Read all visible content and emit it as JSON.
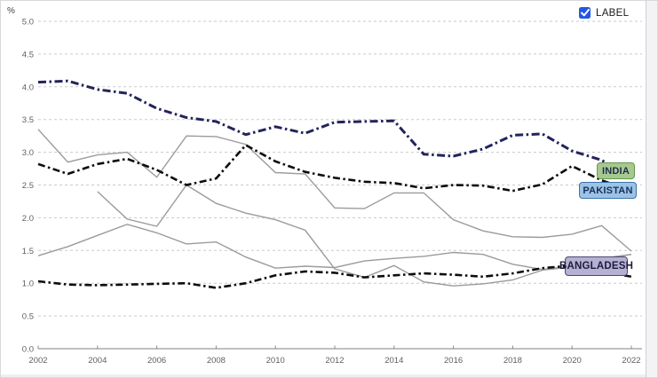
{
  "legend": {
    "checkbox_label": "LABEL",
    "checked": true
  },
  "colors": {
    "checkbox_blue": "#2457e0",
    "grid": "#cacaca",
    "axis": "#9a9a9a",
    "tick_text": "#5f5f5f",
    "background": "#ffffff"
  },
  "chart_data": {
    "type": "line",
    "unit_label": "%",
    "x": [
      2002,
      2003,
      2004,
      2005,
      2006,
      2007,
      2008,
      2009,
      2010,
      2011,
      2012,
      2013,
      2014,
      2015,
      2016,
      2017,
      2018,
      2019,
      2020,
      2021,
      2022
    ],
    "x_tick_labels": [
      "2002",
      "2004",
      "2006",
      "2008",
      "2010",
      "2012",
      "2014",
      "2016",
      "2018",
      "2020",
      "2022"
    ],
    "y_tick_labels": [
      "0.0",
      "0.5",
      "1.0",
      "1.5",
      "2.0",
      "2.5",
      "3.0",
      "3.5",
      "4.0",
      "4.5",
      "5.0"
    ],
    "ylim": [
      0,
      5
    ],
    "grid": "horizontal dashed gridlines every 0.5",
    "legend_position": "top-right checkbox",
    "series": [
      {
        "name": "INDIA",
        "color": "#23235c",
        "line_style": "dash-dot",
        "stroke_width": 3,
        "label": {
          "text": "INDIA",
          "bg": "#a7c88f",
          "border": "#649a4c",
          "text_color": "#1e3050"
        },
        "values": [
          4.07,
          4.09,
          3.96,
          3.9,
          3.67,
          3.53,
          3.47,
          3.27,
          3.39,
          3.29,
          3.46,
          3.47,
          3.48,
          2.97,
          2.94,
          3.05,
          3.26,
          3.28,
          3.02,
          2.88,
          2.6
        ]
      },
      {
        "name": "PAKISTAN",
        "color": "#0d0d0d",
        "line_style": "dash-dot",
        "stroke_width": 2.6,
        "label": {
          "text": "PAKISTAN",
          "bg": "#9cc2e6",
          "border": "#3d72ab",
          "text_color": "#16325a"
        },
        "values": [
          2.82,
          2.67,
          2.82,
          2.9,
          2.73,
          2.5,
          2.6,
          3.11,
          2.86,
          2.7,
          2.61,
          2.55,
          2.53,
          2.45,
          2.5,
          2.49,
          2.41,
          2.51,
          2.79,
          2.57,
          2.42
        ]
      },
      {
        "name": "BANGLADESH",
        "color": "#0d0d0d",
        "line_style": "dash-dot",
        "stroke_width": 2.6,
        "label": {
          "text": "BANGLADESH",
          "bg": "#b6b0d3",
          "border": "#4a4b74",
          "text_color": "#1d1d3c"
        },
        "values": [
          1.03,
          0.98,
          0.97,
          0.98,
          0.99,
          1.0,
          0.93,
          1.0,
          1.12,
          1.18,
          1.16,
          1.09,
          1.12,
          1.15,
          1.13,
          1.1,
          1.15,
          1.23,
          1.27,
          1.18,
          1.1
        ]
      },
      {
        "name": "unlabeled-gray-1",
        "color": "#9b9b9b",
        "line_style": "solid",
        "stroke_width": 1.4,
        "values": [
          3.35,
          2.85,
          2.96,
          3.0,
          2.62,
          3.25,
          3.24,
          3.12,
          2.69,
          2.67,
          2.15,
          2.14,
          2.38,
          2.38,
          1.97,
          1.8,
          1.71,
          1.7,
          1.75,
          1.88,
          1.49
        ]
      },
      {
        "name": "unlabeled-gray-2",
        "color": "#9b9b9b",
        "line_style": "solid",
        "stroke_width": 1.4,
        "values": [
          1.42,
          1.56,
          1.73,
          1.9,
          1.77,
          1.6,
          1.63,
          1.4,
          1.23,
          1.26,
          1.24,
          1.34,
          1.38,
          1.41,
          1.47,
          1.44,
          1.29,
          1.21,
          1.26,
          1.36,
          1.44
        ]
      },
      {
        "name": "unlabeled-gray-3",
        "color": "#9b9b9b",
        "line_style": "solid",
        "stroke_width": 1.4,
        "values": [
          null,
          null,
          2.4,
          1.98,
          1.87,
          2.5,
          2.22,
          2.07,
          1.97,
          1.81,
          1.22,
          1.09,
          1.27,
          1.02,
          0.96,
          0.99,
          1.05,
          1.2,
          1.25,
          1.38,
          1.44
        ]
      }
    ]
  }
}
